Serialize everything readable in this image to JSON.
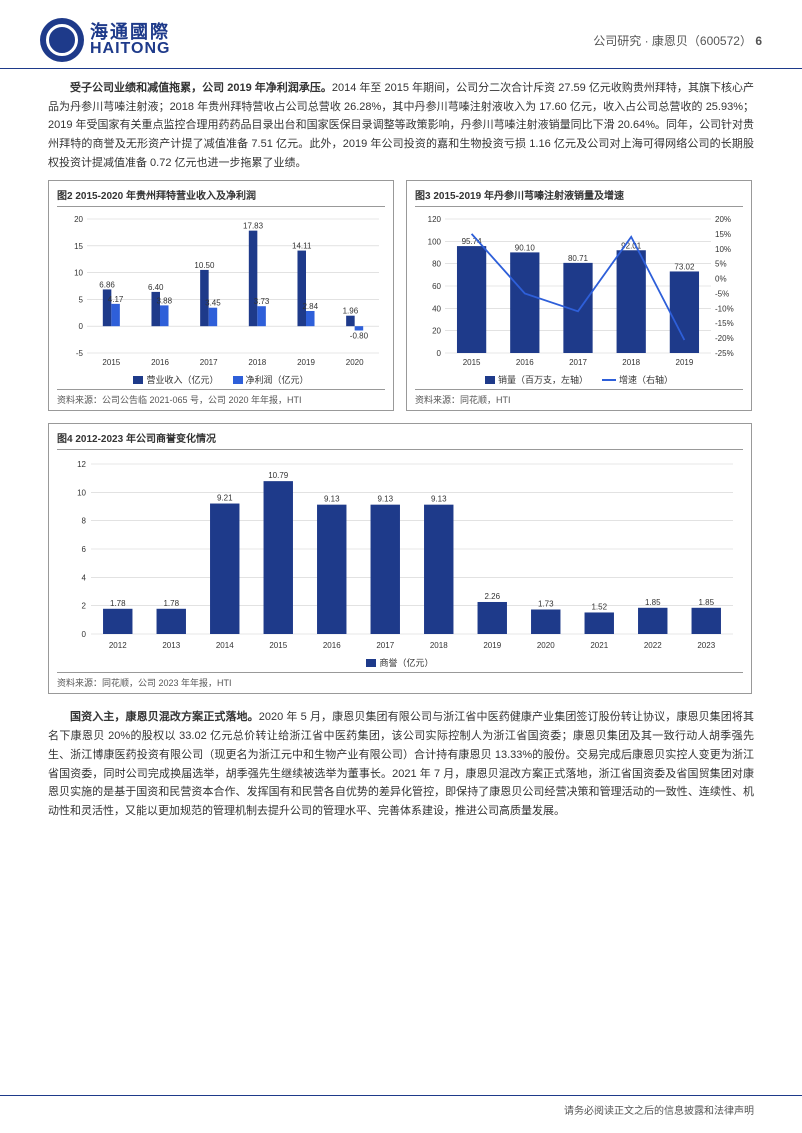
{
  "header": {
    "logo_cn": "海通國際",
    "logo_en": "HAITONG",
    "breadcrumb": "公司研究 · 康恩贝（600572）",
    "page_num": "6"
  },
  "para1_bold": "受子公司业绩和减值拖累，公司 2019 年净利润承压。",
  "para1_rest": "2014 年至 2015 年期间，公司分二次合计斥资 27.59 亿元收购贵州拜特，其旗下核心产品为丹参川芎嗪注射液；2018 年贵州拜特营收占公司总营收 26.28%，其中丹参川芎嗪注射液收入为 17.60 亿元，收入占公司总营收的 25.93%；2019 年受国家有关重点监控合理用药药品目录出台和国家医保目录调整等政策影响，丹参川芎嗪注射液销量同比下滑 20.64%。同年，公司针对贵州拜特的商誉及无形资产计提了减值准备 7.51 亿元。此外，2019 年公司投资的嘉和生物投资亏损 1.16 亿元及公司对上海可得网络公司的长期股权投资计提减值准备 0.72 亿元也进一步拖累了业绩。",
  "chart2": {
    "title": "图2  2015-2020 年贵州拜特营业收入及净利润",
    "type": "grouped-bar",
    "categories": [
      "2015",
      "2016",
      "2017",
      "2018",
      "2019",
      "2020"
    ],
    "series": [
      {
        "name": "营业收入（亿元）",
        "color": "#1e3a8a",
        "values": [
          6.86,
          6.4,
          10.5,
          17.83,
          14.11,
          1.96
        ]
      },
      {
        "name": "净利润（亿元）",
        "color": "#2e5fd9",
        "values": [
          4.17,
          3.88,
          3.45,
          3.73,
          2.84,
          -0.8
        ]
      }
    ],
    "ylim": [
      -5,
      20
    ],
    "ytick_step": 5,
    "grid_color": "#d0d0d0",
    "bar_width": 0.35,
    "label_fontsize": 8,
    "source": "资料来源：公司公告临 2021-065 号，公司 2020 年年报，HTI"
  },
  "chart3": {
    "title": "图3  2015-2019 年丹参川芎嗪注射液销量及增速",
    "type": "bar-line",
    "categories": [
      "2015",
      "2016",
      "2017",
      "2018",
      "2019"
    ],
    "bar": {
      "name": "销量（百万支，左轴）",
      "color": "#1e3a8a",
      "values": [
        95.74,
        90.1,
        80.71,
        92.01,
        73.02
      ]
    },
    "line": {
      "name": "增速（右轴）",
      "color": "#2e5fd9",
      "values": [
        15,
        -5,
        -11,
        14,
        -20.64
      ]
    },
    "ylim_left": [
      0,
      120
    ],
    "ytick_left": 20,
    "ylim_right": [
      -25,
      20
    ],
    "ytick_right": 5,
    "grid_color": "#d0d0d0",
    "label_fontsize": 8,
    "source": "资料来源：同花顺，HTI"
  },
  "chart4": {
    "title": "图4  2012-2023 年公司商誉变化情况",
    "type": "bar",
    "categories": [
      "2012",
      "2013",
      "2014",
      "2015",
      "2016",
      "2017",
      "2018",
      "2019",
      "2020",
      "2021",
      "2022",
      "2023"
    ],
    "series": {
      "name": "商誉（亿元）",
      "color": "#1e3a8a",
      "values": [
        1.78,
        1.78,
        9.21,
        10.79,
        9.13,
        9.13,
        9.13,
        2.26,
        1.73,
        1.52,
        1.85,
        1.85
      ]
    },
    "ylim": [
      0,
      12
    ],
    "ytick_step": 2,
    "grid_color": "#d0d0d0",
    "bar_width": 0.55,
    "label_fontsize": 8,
    "source": "资料来源：同花顺，公司 2023 年年报，HTI"
  },
  "para2_bold": "国资入主，康恩贝混改方案正式落地。",
  "para2_rest": "2020 年 5 月，康恩贝集团有限公司与浙江省中医药健康产业集团签订股份转让协议，康恩贝集团将其名下康恩贝 20%的股权以 33.02 亿元总价转让给浙江省中医药集团，该公司实际控制人为浙江省国资委；康恩贝集团及其一致行动人胡季强先生、浙江博康医药投资有限公司（现更名为浙江元中和生物产业有限公司）合计持有康恩贝 13.33%的股份。交易完成后康恩贝实控人变更为浙江省国资委，同时公司完成换届选举，胡季强先生继续被选举为董事长。2021 年 7 月，康恩贝混改方案正式落地，浙江省国资委及省国贸集团对康恩贝实施的是基于国资和民营资本合作、发挥国有和民营各自优势的差异化管控，即保持了康恩贝公司经营决策和管理活动的一致性、连续性、机动性和灵活性，又能以更加规范的管理机制去提升公司的管理水平、完善体系建设，推进公司高质量发展。",
  "footer": "请务必阅读正文之后的信息披露和法律声明"
}
